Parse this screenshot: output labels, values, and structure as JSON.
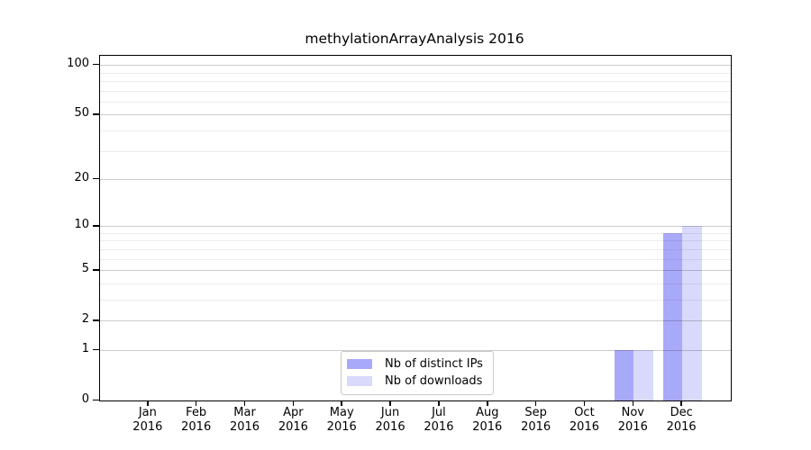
{
  "chart_data": {
    "type": "bar",
    "title": "methylationArrayAnalysis 2016",
    "categories": [
      "Jan 2016",
      "Feb 2016",
      "Mar 2016",
      "Apr 2016",
      "May 2016",
      "Jun 2016",
      "Jul 2016",
      "Aug 2016",
      "Sep 2016",
      "Oct 2016",
      "Nov 2016",
      "Dec 2016"
    ],
    "series": [
      {
        "name": "Nb of distinct IPs",
        "color": "#a9a9fa",
        "values": [
          0,
          0,
          0,
          0,
          0,
          0,
          0,
          0,
          0,
          0,
          1,
          9
        ]
      },
      {
        "name": "Nb of downloads",
        "color": "#d9d9fb",
        "values": [
          0,
          0,
          0,
          0,
          0,
          0,
          0,
          0,
          0,
          0,
          1,
          10
        ]
      }
    ],
    "xlabel": "",
    "ylabel": "",
    "yscale": "log1p",
    "ylim": [
      0,
      113
    ],
    "yticks": [
      0,
      1,
      2,
      5,
      10,
      20,
      50,
      100
    ],
    "minor_gridlines": [
      3,
      4,
      6,
      7,
      8,
      9,
      30,
      40,
      60,
      70,
      80,
      90
    ],
    "grid": true,
    "legend_position": "inside-bottom-center",
    "colors": {
      "axis": "#000000",
      "major_grid": "#cccccc",
      "minor_grid": "#ececec",
      "background": "#ffffff"
    }
  }
}
